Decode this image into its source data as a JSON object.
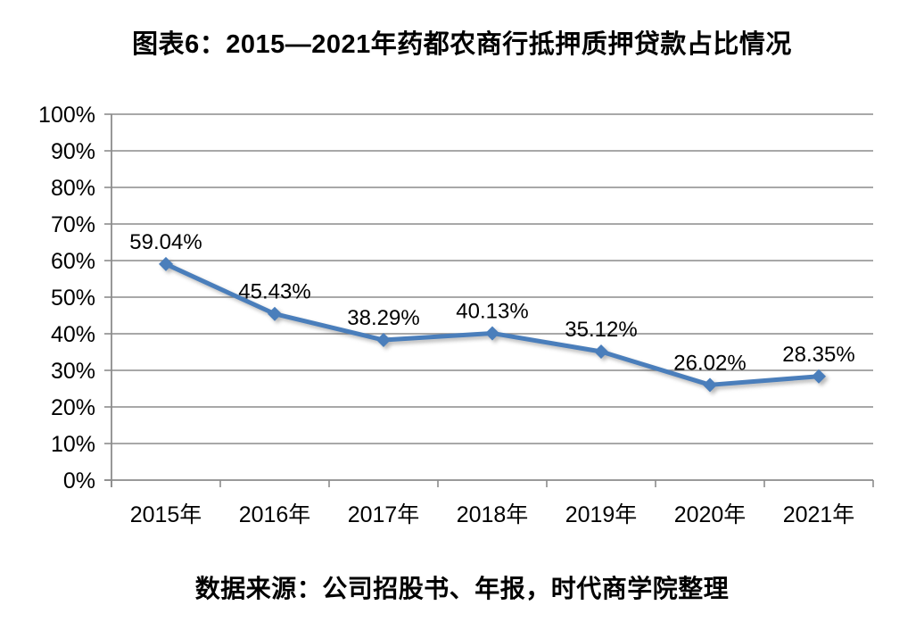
{
  "title": "图表6：2015—2021年药都农商行抵押质押贷款占比情况",
  "source_note": "数据来源：公司招股书、年报，时代商学院整理",
  "chart_data": {
    "type": "line",
    "title": "图表6：2015—2021年药都农商行抵押质押贷款占比情况",
    "categories": [
      "2015年",
      "2016年",
      "2017年",
      "2018年",
      "2019年",
      "2020年",
      "2021年"
    ],
    "values": [
      59.04,
      45.43,
      38.29,
      40.13,
      35.12,
      26.02,
      28.35
    ],
    "data_labels": [
      "59.04%",
      "45.43%",
      "38.29%",
      "40.13%",
      "35.12%",
      "26.02%",
      "28.35%"
    ],
    "y_tick_labels": [
      "0%",
      "10%",
      "20%",
      "30%",
      "40%",
      "50%",
      "60%",
      "70%",
      "80%",
      "90%",
      "100%"
    ],
    "ylim": [
      0,
      100
    ],
    "grid": true,
    "legend": "none",
    "marker": "diamond",
    "colors": {
      "line": "#4A7EBB",
      "grid": "#8C8C8C",
      "axis": "#8C8C8C",
      "text": "#000000",
      "background": "#FFFFFF"
    },
    "source": "数据来源：公司招股书、年报，时代商学院整理"
  }
}
